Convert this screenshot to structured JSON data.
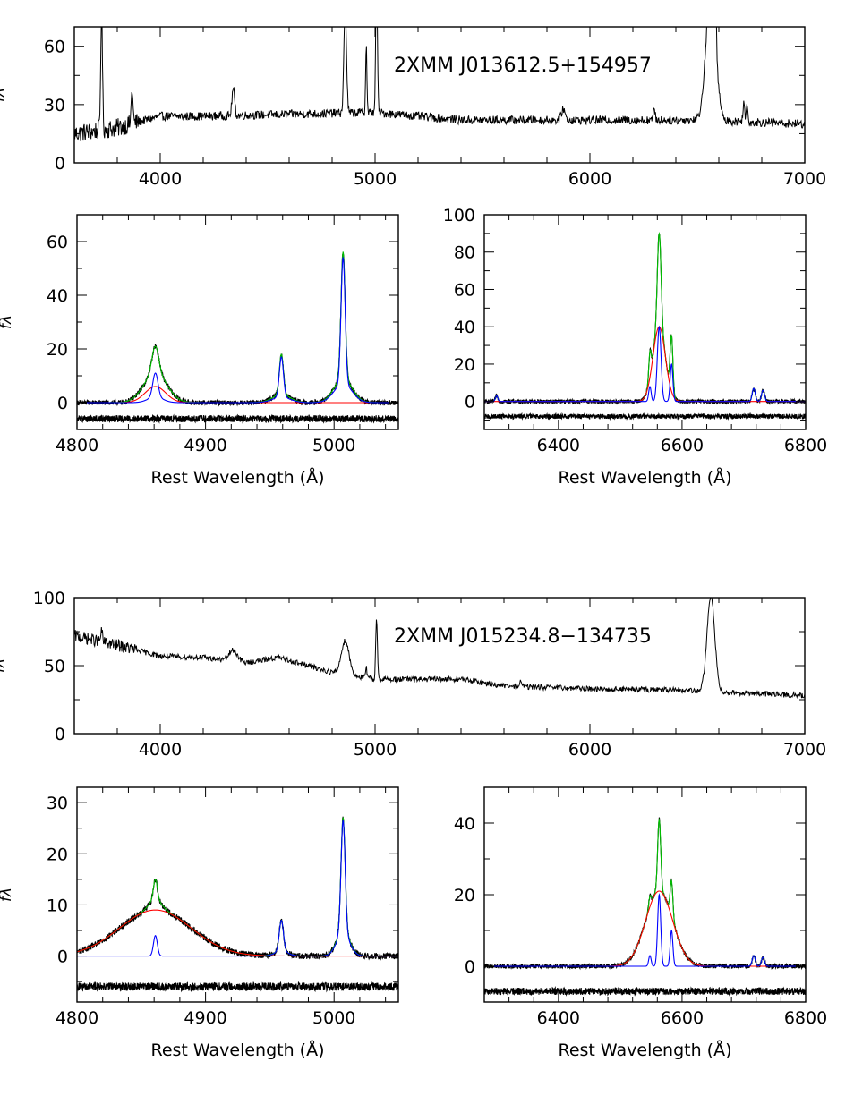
{
  "figure": {
    "top_object": "2XMM J013612.5+154957",
    "bottom_object": "2XMM J015234.8−134735"
  },
  "chart_data": [
    {
      "id": "top_full",
      "type": "line",
      "title": "2XMM J013612.5+154957",
      "xlabel": "",
      "ylabel": "fλ",
      "xlim": [
        3600,
        7000
      ],
      "ylim": [
        0,
        70
      ],
      "xticks": [
        4000,
        5000,
        6000,
        7000
      ],
      "yticks": [
        0,
        30,
        60
      ],
      "continuum": [
        [
          3600,
          15
        ],
        [
          3800,
          18
        ],
        [
          4000,
          24
        ],
        [
          4200,
          24
        ],
        [
          4600,
          25
        ],
        [
          5000,
          26
        ],
        [
          5400,
          22
        ],
        [
          5800,
          22
        ],
        [
          6200,
          22
        ],
        [
          6500,
          22
        ],
        [
          7000,
          20
        ]
      ],
      "lines": [
        [
          3727,
          62,
          4
        ],
        [
          3869,
          18,
          4
        ],
        [
          4340,
          14,
          6
        ],
        [
          4861,
          55,
          6
        ],
        [
          4959,
          35,
          3
        ],
        [
          5007,
          70,
          4
        ],
        [
          5876,
          6,
          8
        ],
        [
          6300,
          6,
          4
        ],
        [
          6563,
          70,
          22
        ],
        [
          6583,
          40,
          4
        ],
        [
          6716,
          10,
          4
        ],
        [
          6731,
          8,
          4
        ]
      ],
      "noise": 2.2
    },
    {
      "id": "top_hbeta",
      "type": "line",
      "xlabel": "Rest Wavelength (Å)",
      "ylabel": "fλ",
      "xlim": [
        4800,
        5050
      ],
      "ylim": [
        -10,
        70
      ],
      "xticks": [
        4800,
        4900,
        5000
      ],
      "yticks": [
        0,
        20,
        40,
        60
      ],
      "series": [
        {
          "component": "data",
          "color": "#000000",
          "baseline": 0,
          "lines": [
            [
              4861,
              10,
              2.6
            ],
            [
              4861,
              11,
              9
            ],
            [
              4959,
              15,
              1.6
            ],
            [
              4959,
              3,
              7
            ],
            [
              5007,
              47,
              1.6
            ],
            [
              5007,
              9,
              7
            ]
          ],
          "noise": 0.9
        },
        {
          "component": "total_model",
          "color": "#00c000",
          "baseline": 0,
          "lines": [
            [
              4861,
              10,
              2.6
            ],
            [
              4861,
              11,
              9
            ],
            [
              4959,
              15,
              1.6
            ],
            [
              4959,
              3,
              7
            ],
            [
              5007,
              47,
              1.6
            ],
            [
              5007,
              9,
              7
            ]
          ]
        },
        {
          "component": "broad_line",
          "color": "#ff0000",
          "baseline": 0,
          "lines": [
            [
              4861,
              6,
              8
            ]
          ]
        },
        {
          "component": "narrow_lines",
          "color": "#0000ff",
          "baseline": 0,
          "lines": [
            [
              4861,
              9,
              2.0
            ],
            [
              4861,
              2,
              6
            ],
            [
              4959,
              15,
              1.6
            ],
            [
              4959,
              2,
              7
            ],
            [
              5007,
              47,
              1.6
            ],
            [
              5007,
              7,
              7
            ]
          ]
        },
        {
          "component": "residual",
          "color": "#000000",
          "baseline": -6,
          "lines": [],
          "noise": 1.3
        }
      ]
    },
    {
      "id": "top_halpha",
      "type": "line",
      "xlabel": "Rest Wavelength (Å)",
      "ylabel": "",
      "xlim": [
        6280,
        6800
      ],
      "ylim": [
        -15,
        100
      ],
      "xticks": [
        6400,
        6600,
        6800
      ],
      "yticks": [
        0,
        20,
        40,
        60,
        80,
        100
      ],
      "series": [
        {
          "component": "data",
          "color": "#000000",
          "baseline": 0,
          "lines": [
            [
              6300,
              3,
              2
            ],
            [
              6548,
              14,
              2
            ],
            [
              6563,
              50,
              3
            ],
            [
              6563,
              40,
              10
            ],
            [
              6583,
              30,
              2.2
            ],
            [
              6716,
              7,
              2.5
            ],
            [
              6731,
              6,
              2.5
            ]
          ],
          "noise": 1.1
        },
        {
          "component": "total_model",
          "color": "#00c000",
          "baseline": 0,
          "lines": [
            [
              6300,
              3,
              2
            ],
            [
              6548,
              14,
              2
            ],
            [
              6563,
              50,
              3
            ],
            [
              6563,
              40,
              10
            ],
            [
              6583,
              30,
              2.2
            ],
            [
              6716,
              7,
              2.5
            ],
            [
              6731,
              6,
              2.5
            ]
          ]
        },
        {
          "component": "broad_line",
          "color": "#ff0000",
          "baseline": 0,
          "lines": [
            [
              6563,
              40,
              10
            ]
          ]
        },
        {
          "component": "narrow_lines",
          "color": "#0000ff",
          "baseline": 0,
          "lines": [
            [
              6300,
              3,
              2
            ],
            [
              6548,
              8,
              2
            ],
            [
              6563,
              40,
              3
            ],
            [
              6583,
              20,
              2.2
            ],
            [
              6716,
              7,
              2.5
            ],
            [
              6731,
              6,
              2.5
            ]
          ]
        },
        {
          "component": "residual",
          "color": "#000000",
          "baseline": -8,
          "lines": [],
          "noise": 1.3
        }
      ]
    },
    {
      "id": "bottom_full",
      "type": "line",
      "title": "2XMM J015234.8−134735",
      "xlabel": "",
      "ylabel": "fλ",
      "xlim": [
        3600,
        7000
      ],
      "ylim": [
        0,
        100
      ],
      "xticks": [
        4000,
        5000,
        6000,
        7000
      ],
      "yticks": [
        0,
        50,
        100
      ],
      "continuum": [
        [
          3600,
          72
        ],
        [
          3800,
          65
        ],
        [
          4000,
          57
        ],
        [
          4200,
          56
        ],
        [
          4400,
          52
        ],
        [
          4550,
          56
        ],
        [
          4800,
          45
        ],
        [
          5000,
          40
        ],
        [
          5400,
          40
        ],
        [
          5600,
          35
        ],
        [
          6000,
          33
        ],
        [
          6400,
          32
        ],
        [
          7000,
          28
        ]
      ],
      "lines": [
        [
          3727,
          8,
          4
        ],
        [
          4340,
          8,
          20
        ],
        [
          4861,
          25,
          18
        ],
        [
          4959,
          8,
          3
        ],
        [
          5007,
          45,
          4
        ],
        [
          5680,
          5,
          4
        ],
        [
          6563,
          70,
          18
        ]
      ],
      "noise": 2.0
    },
    {
      "id": "bottom_hbeta",
      "type": "line",
      "xlabel": "Rest Wavelength (Å)",
      "ylabel": "fλ",
      "xlim": [
        4800,
        5050
      ],
      "ylim": [
        -9,
        33
      ],
      "xticks": [
        4800,
        4900,
        5000
      ],
      "yticks": [
        0,
        10,
        20,
        30
      ],
      "series": [
        {
          "component": "data",
          "color": "#000000",
          "baseline": 0,
          "lines": [
            [
              4861,
              9,
              28
            ],
            [
              4861,
              4,
              1.5
            ],
            [
              4861,
              2,
              5
            ],
            [
              4959,
              6,
              1.6
            ],
            [
              4959,
              1,
              5
            ],
            [
              5007,
              22,
              1.6
            ],
            [
              5007,
              5,
              5
            ]
          ],
          "noise": 0.6
        },
        {
          "component": "total_model",
          "color": "#00c000",
          "baseline": 0,
          "lines": [
            [
              4861,
              9,
              28
            ],
            [
              4861,
              4,
              1.5
            ],
            [
              4861,
              2,
              5
            ],
            [
              4959,
              6,
              1.6
            ],
            [
              4959,
              1,
              5
            ],
            [
              5007,
              22,
              1.6
            ],
            [
              5007,
              5,
              5
            ]
          ]
        },
        {
          "component": "broad_line",
          "color": "#ff0000",
          "baseline": 0,
          "lines": [
            [
              4861,
              9,
              28
            ]
          ]
        },
        {
          "component": "narrow_lines",
          "color": "#0000ff",
          "baseline": 0,
          "lines": [
            [
              4861,
              4,
              1.5
            ],
            [
              4959,
              6,
              1.6
            ],
            [
              4959,
              1,
              5
            ],
            [
              5007,
              22,
              1.6
            ],
            [
              5007,
              4.5,
              5
            ]
          ]
        },
        {
          "component": "residual",
          "color": "#000000",
          "baseline": -6,
          "lines": [],
          "noise": 0.8
        }
      ]
    },
    {
      "id": "bottom_halpha",
      "type": "line",
      "xlabel": "Rest Wavelength (Å)",
      "ylabel": "",
      "xlim": [
        6280,
        6800
      ],
      "ylim": [
        -10,
        50
      ],
      "xticks": [
        6400,
        6600,
        6800
      ],
      "yticks": [
        0,
        20,
        40
      ],
      "series": [
        {
          "component": "data",
          "color": "#000000",
          "baseline": 0,
          "lines": [
            [
              6563,
              21,
              22
            ],
            [
              6548,
              3,
              2
            ],
            [
              6563,
              20,
              2.5
            ],
            [
              6583,
              10,
              2.2
            ],
            [
              6716,
              3,
              2.5
            ],
            [
              6731,
              2.5,
              2.5
            ]
          ],
          "noise": 0.6
        },
        {
          "component": "total_model",
          "color": "#00c000",
          "baseline": 0,
          "lines": [
            [
              6563,
              21,
              22
            ],
            [
              6548,
              3,
              2
            ],
            [
              6563,
              20,
              2.5
            ],
            [
              6583,
              10,
              2.2
            ],
            [
              6716,
              3,
              2.5
            ],
            [
              6731,
              2.5,
              2.5
            ]
          ]
        },
        {
          "component": "broad_line",
          "color": "#ff0000",
          "baseline": 0,
          "lines": [
            [
              6563,
              21,
              22
            ]
          ]
        },
        {
          "component": "narrow_lines",
          "color": "#0000ff",
          "baseline": 0,
          "lines": [
            [
              6548,
              3,
              2
            ],
            [
              6563,
              20,
              2.5
            ],
            [
              6583,
              10,
              2.2
            ],
            [
              6716,
              3,
              2.5
            ],
            [
              6731,
              2.5,
              2.5
            ]
          ]
        },
        {
          "component": "residual",
          "color": "#000000",
          "baseline": -7,
          "lines": [],
          "noise": 1.0
        }
      ]
    }
  ]
}
